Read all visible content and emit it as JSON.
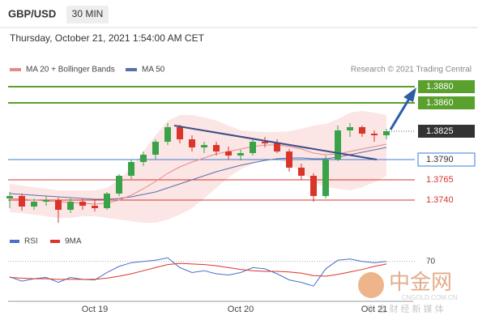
{
  "header": {
    "symbol": "GBP/USD",
    "timeframe": "30 MIN",
    "timestamp": "Thursday, October 21, 2021 1:54:00 AM CET",
    "credit": "Research © 2021 Trading Central"
  },
  "watermark": {
    "name": "中金网",
    "site": "CNGOLD.COM.CN",
    "slogan": "中 金 财 经 新 媒 体"
  },
  "chart_data": [
    {
      "type": "candlestick",
      "ma20_name": "MA 20 + Bollinger Bands",
      "ma50_name": "MA 50",
      "up_color": "#3aa34a",
      "down_color": "#d9352b",
      "ma20_color": "#e58a8a",
      "ma50_color": "#5a6ea8",
      "band_color": "#fbdada",
      "x": [
        null,
        null,
        null,
        null,
        null,
        null,
        null,
        "Oct 19",
        null,
        null,
        null,
        null,
        null,
        null,
        null,
        null,
        null,
        null,
        null,
        "Oct 20",
        null,
        null,
        null,
        null,
        null,
        null,
        null,
        null,
        null,
        null,
        "Oct 21",
        null
      ],
      "open": [
        1.3742,
        1.3745,
        1.3732,
        1.3738,
        1.374,
        1.3728,
        1.3738,
        1.3733,
        1.373,
        1.3748,
        1.377,
        1.3787,
        1.3796,
        1.3812,
        1.383,
        1.3815,
        1.3805,
        1.3808,
        1.38,
        1.3795,
        1.3798,
        1.3812,
        1.381,
        1.38,
        1.378,
        1.377,
        1.3745,
        1.379,
        1.3826,
        1.383,
        1.3822,
        1.382
      ],
      "high": [
        1.375,
        1.3748,
        1.3742,
        1.3745,
        1.3743,
        1.3742,
        1.3742,
        1.374,
        1.375,
        1.3772,
        1.379,
        1.38,
        1.3815,
        1.3835,
        1.3833,
        1.382,
        1.3812,
        1.3812,
        1.3806,
        1.3802,
        1.3815,
        1.3818,
        1.3815,
        1.3803,
        1.3785,
        1.3773,
        1.3795,
        1.3832,
        1.3835,
        1.3832,
        1.3826,
        1.3828
      ],
      "low": [
        1.373,
        1.3727,
        1.3728,
        1.3733,
        1.3712,
        1.3724,
        1.3728,
        1.3726,
        1.3728,
        1.3745,
        1.3766,
        1.3782,
        1.379,
        1.3808,
        1.381,
        1.38,
        1.3798,
        1.3795,
        1.379,
        1.3789,
        1.3795,
        1.3805,
        1.3798,
        1.3775,
        1.3765,
        1.3738,
        1.3742,
        1.3788,
        1.3818,
        1.3818,
        1.3812,
        1.3815
      ],
      "close": [
        1.3745,
        1.3732,
        1.3738,
        1.374,
        1.3728,
        1.3738,
        1.3733,
        1.373,
        1.3748,
        1.377,
        1.3787,
        1.3796,
        1.3812,
        1.383,
        1.3815,
        1.3805,
        1.3808,
        1.38,
        1.3795,
        1.3798,
        1.3812,
        1.381,
        1.38,
        1.378,
        1.377,
        1.3745,
        1.379,
        1.3826,
        1.383,
        1.3822,
        1.382,
        1.3825
      ],
      "ma20": [
        1.3742,
        1.3741,
        1.374,
        1.3739,
        1.3738,
        1.3737,
        1.3736,
        1.3735,
        1.3736,
        1.374,
        1.3746,
        1.3754,
        1.3763,
        1.3773,
        1.3781,
        1.3787,
        1.3792,
        1.3797,
        1.38,
        1.3803,
        1.3806,
        1.3808,
        1.3808,
        1.3806,
        1.3803,
        1.3798,
        1.3796,
        1.3797,
        1.38,
        1.3803,
        1.3806,
        1.3809
      ],
      "ma50": [
        1.3748,
        1.3747,
        1.3746,
        1.3745,
        1.3744,
        1.3743,
        1.3742,
        1.3741,
        1.3741,
        1.3742,
        1.3744,
        1.3747,
        1.375,
        1.3755,
        1.376,
        1.3765,
        1.377,
        1.3775,
        1.3779,
        1.3783,
        1.3786,
        1.3789,
        1.3791,
        1.3792,
        1.3792,
        1.3791,
        1.3791,
        1.3793,
        1.3796,
        1.3799,
        1.3802,
        1.3805
      ],
      "boll_upper": [
        1.376,
        1.3758,
        1.3756,
        1.3754,
        1.3752,
        1.3752,
        1.3752,
        1.3752,
        1.3755,
        1.3765,
        1.378,
        1.38,
        1.382,
        1.3838,
        1.3845,
        1.3845,
        1.3842,
        1.3838,
        1.3832,
        1.3826,
        1.3825,
        1.3824,
        1.3824,
        1.3825,
        1.3828,
        1.3832,
        1.3834,
        1.384,
        1.3848,
        1.385,
        1.3848,
        1.3845
      ],
      "boll_lower": [
        1.3725,
        1.3724,
        1.3722,
        1.372,
        1.3718,
        1.3718,
        1.372,
        1.372,
        1.3718,
        1.3716,
        1.3714,
        1.3712,
        1.3712,
        1.3716,
        1.3722,
        1.373,
        1.3742,
        1.3755,
        1.3768,
        1.3778,
        1.3785,
        1.379,
        1.379,
        1.3785,
        1.3775,
        1.3762,
        1.3756,
        1.3754,
        1.3752,
        1.3756,
        1.3762,
        1.377
      ],
      "levels": [
        {
          "value": 1.388,
          "label": "1.3880",
          "color": "#5aa02c",
          "style": "box"
        },
        {
          "value": 1.386,
          "label": "1.3860",
          "color": "#5aa02c",
          "style": "box"
        },
        {
          "value": 1.3825,
          "label": "1.3825",
          "color": "#333333",
          "style": "box"
        },
        {
          "value": 1.379,
          "label": "1.3790",
          "color": "#3b7dd8",
          "style": "outline"
        },
        {
          "value": 1.3765,
          "label": "1.3765",
          "color": "#d9352b",
          "style": "text"
        },
        {
          "value": 1.374,
          "label": "1.3740",
          "color": "#d9352b",
          "style": "text"
        }
      ],
      "ylim": [
        1.3707,
        1.3892
      ]
    },
    {
      "type": "line",
      "series": [
        {
          "name": "RSI",
          "color": "#4a6fc9",
          "values": [
            45,
            38,
            42,
            44,
            36,
            44,
            41,
            40,
            52,
            62,
            68,
            70,
            72,
            76,
            60,
            52,
            55,
            50,
            48,
            52,
            60,
            58,
            50,
            40,
            36,
            30,
            58,
            72,
            74,
            70,
            68,
            70
          ]
        },
        {
          "name": "9MA",
          "color": "#d9352b",
          "values": [
            44,
            43,
            42,
            42,
            41,
            41,
            41,
            41,
            43,
            46,
            50,
            55,
            60,
            65,
            67,
            66,
            65,
            63,
            60,
            57,
            55,
            54,
            54,
            53,
            51,
            47,
            46,
            49,
            53,
            57,
            62,
            66
          ]
        }
      ],
      "ylim": [
        0,
        100
      ],
      "yticks": [
        70
      ]
    }
  ]
}
